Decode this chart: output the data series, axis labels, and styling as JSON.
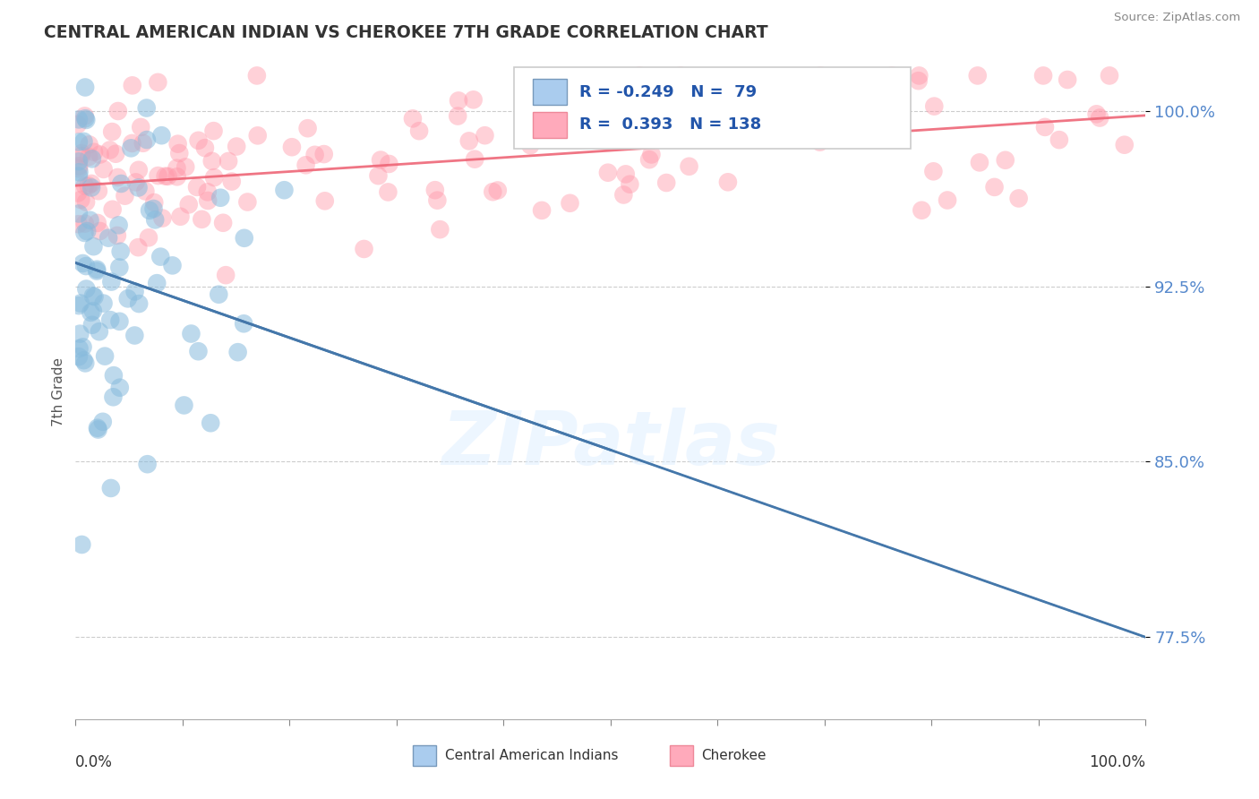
{
  "title": "CENTRAL AMERICAN INDIAN VS CHEROKEE 7TH GRADE CORRELATION CHART",
  "source_text": "Source: ZipAtlas.com",
  "ylabel": "7th Grade",
  "xlim": [
    0.0,
    100.0
  ],
  "ylim": [
    74.0,
    102.0
  ],
  "yticks": [
    77.5,
    85.0,
    92.5,
    100.0
  ],
  "blue_R": -0.249,
  "blue_N": 79,
  "red_R": 0.393,
  "red_N": 138,
  "blue_color": "#88BBDD",
  "red_color": "#FF99AA",
  "blue_line_color": "#4477AA",
  "red_line_color": "#EE6677",
  "background_color": "#FFFFFF",
  "blue_line_y0": 93.5,
  "blue_line_y1": 77.5,
  "red_line_y0": 96.8,
  "red_line_y1": 99.8,
  "legend_R_blue": "-0.249",
  "legend_N_blue": "79",
  "legend_R_red": "0.393",
  "legend_N_red": "138"
}
